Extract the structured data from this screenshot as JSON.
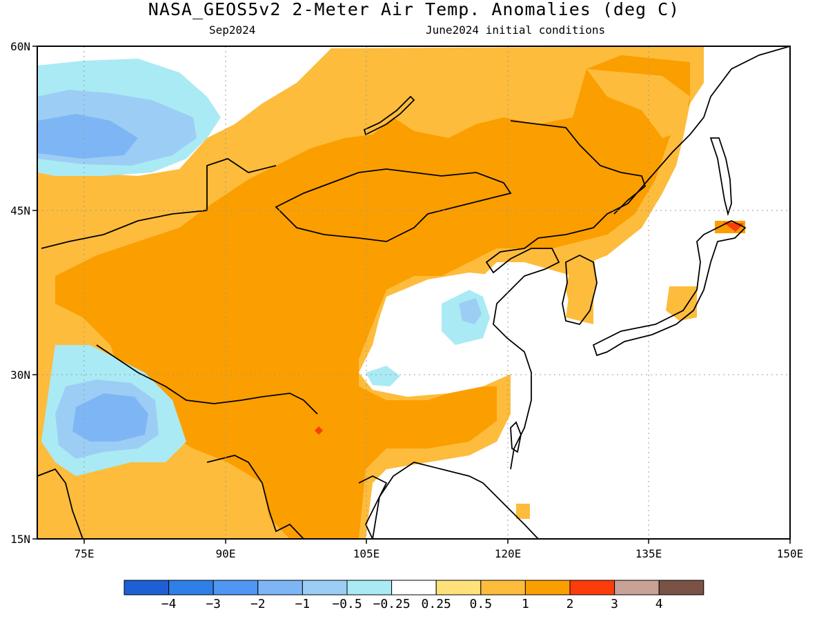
{
  "header": {
    "title": "NASA_GEOS5v2 2-Meter Air Temp. Anomalies (deg C)",
    "valid_month": "Sep2024",
    "initial_conditions": "June2024 initial conditions"
  },
  "map": {
    "lon_range": [
      70,
      150
    ],
    "lat_range": [
      15,
      60
    ],
    "lat_labels": [
      "60N",
      "45N",
      "30N",
      "15N"
    ],
    "lon_labels": [
      "75E",
      "90E",
      "105E",
      "120E",
      "135E",
      "150E"
    ],
    "regions": [
      {
        "name": "Siberia / Mongolia / China interior",
        "anomaly_class": "1 to 2"
      },
      {
        "name": "Northeast Siberia",
        "anomaly_class": "0.5 to 1"
      },
      {
        "name": "West Siberia",
        "anomaly_class": "-1 to -0.5"
      },
      {
        "name": "Pakistan / NW India",
        "anomaly_class": "-2 to -1"
      },
      {
        "name": "Eastern China (Yangtze)",
        "anomaly_class": "-0.5 to 0.25"
      },
      {
        "name": "Hokkaido",
        "anomaly_class": "2 to 3"
      },
      {
        "name": "Western Pacific ocean",
        "anomaly_class": "masked"
      }
    ]
  },
  "colorbar": {
    "colors": [
      "#1e5fd6",
      "#2f7fe8",
      "#4f97f3",
      "#7eb6f5",
      "#9ccef5",
      "#aaeaf4",
      "#ffffff",
      "#fee17a",
      "#fdbc3c",
      "#fb9e00",
      "#fb3d0b",
      "#c8a197",
      "#7a5346"
    ],
    "labels": [
      "-4",
      "-3",
      "-2",
      "-1",
      "-0.5",
      "-0.25",
      "0.25",
      "0.5",
      "1",
      "2",
      "3",
      "4"
    ]
  }
}
